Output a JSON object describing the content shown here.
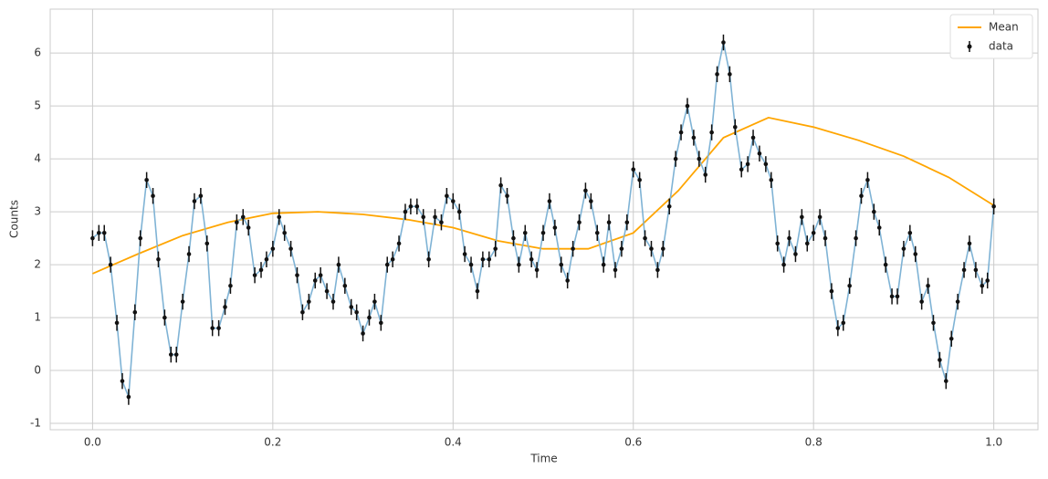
{
  "chart_data": {
    "type": "errorbar",
    "x_label": "Time",
    "y_label": "Counts",
    "xlim": [
      -0.047,
      1.049
    ],
    "ylim": [
      -1.12,
      6.83
    ],
    "xticks": [
      {
        "value": 0,
        "label": "0.0"
      },
      {
        "value": 0.2,
        "label": "0.2"
      },
      {
        "value": 0.4,
        "label": "0.4"
      },
      {
        "value": 0.6,
        "label": "0.6"
      },
      {
        "value": 0.8,
        "label": "0.8"
      },
      {
        "value": 1,
        "label": "1.0"
      }
    ],
    "yticks": [
      -1,
      0,
      1,
      2,
      3,
      4,
      5,
      6
    ],
    "grid": true,
    "legend": "upper right",
    "series": [
      {
        "name": "Mean",
        "kind": "line",
        "color": "#ffa500",
        "x": [
          0,
          0.05,
          0.1,
          0.15,
          0.2,
          0.25,
          0.3,
          0.35,
          0.4,
          0.45,
          0.5,
          0.55,
          0.6,
          0.65,
          0.7,
          0.75,
          0.8,
          0.85,
          0.9,
          0.95,
          1
        ],
        "values": [
          1.83,
          2.2,
          2.55,
          2.8,
          2.97,
          3.0,
          2.95,
          2.85,
          2.7,
          2.45,
          2.3,
          2.3,
          2.6,
          3.4,
          4.4,
          4.78,
          4.6,
          4.35,
          4.05,
          3.65,
          3.12
        ]
      },
      {
        "name": "data",
        "kind": "errorbar",
        "color": "#111111",
        "line_color": "#7fb3d5",
        "yerr": 0.15,
        "x": [
          0,
          0.007,
          0.013,
          0.02,
          0.027,
          0.033,
          0.04,
          0.047,
          0.053,
          0.06,
          0.067,
          0.073,
          0.08,
          0.087,
          0.093,
          0.1,
          0.107,
          0.113,
          0.12,
          0.127,
          0.133,
          0.14,
          0.147,
          0.153,
          0.16,
          0.167,
          0.173,
          0.18,
          0.187,
          0.193,
          0.2,
          0.207,
          0.213,
          0.22,
          0.227,
          0.233,
          0.24,
          0.247,
          0.253,
          0.26,
          0.267,
          0.273,
          0.28,
          0.287,
          0.293,
          0.3,
          0.307,
          0.313,
          0.32,
          0.327,
          0.333,
          0.34,
          0.347,
          0.353,
          0.36,
          0.367,
          0.373,
          0.38,
          0.387,
          0.393,
          0.4,
          0.407,
          0.413,
          0.42,
          0.427,
          0.433,
          0.44,
          0.447,
          0.453,
          0.46,
          0.467,
          0.473,
          0.48,
          0.487,
          0.493,
          0.5,
          0.507,
          0.513,
          0.52,
          0.527,
          0.533,
          0.54,
          0.547,
          0.553,
          0.56,
          0.567,
          0.573,
          0.58,
          0.587,
          0.593,
          0.6,
          0.607,
          0.613,
          0.62,
          0.627,
          0.633,
          0.64,
          0.647,
          0.653,
          0.66,
          0.667,
          0.673,
          0.68,
          0.687,
          0.693,
          0.7,
          0.707,
          0.713,
          0.72,
          0.727,
          0.733,
          0.74,
          0.747,
          0.753,
          0.76,
          0.767,
          0.773,
          0.78,
          0.787,
          0.793,
          0.8,
          0.807,
          0.813,
          0.82,
          0.827,
          0.833,
          0.84,
          0.847,
          0.853,
          0.86,
          0.867,
          0.873,
          0.88,
          0.887,
          0.893,
          0.9,
          0.907,
          0.913,
          0.92,
          0.927,
          0.933,
          0.94,
          0.947,
          0.953,
          0.96,
          0.967,
          0.973,
          0.98,
          0.987,
          0.993,
          1
        ],
        "values": [
          2.5,
          2.6,
          2.6,
          2.0,
          0.9,
          -0.2,
          -0.5,
          1.1,
          2.5,
          3.6,
          3.3,
          2.1,
          1.0,
          0.3,
          0.3,
          1.3,
          2.2,
          3.2,
          3.3,
          2.4,
          0.8,
          0.8,
          1.2,
          1.6,
          2.8,
          2.9,
          2.7,
          1.8,
          1.9,
          2.1,
          2.3,
          2.9,
          2.6,
          2.3,
          1.8,
          1.1,
          1.3,
          1.7,
          1.8,
          1.5,
          1.3,
          2.0,
          1.6,
          1.2,
          1.1,
          0.7,
          1.0,
          1.3,
          0.9,
          2.0,
          2.1,
          2.4,
          3.0,
          3.1,
          3.1,
          2.9,
          2.1,
          2.9,
          2.8,
          3.3,
          3.2,
          3.0,
          2.2,
          2.0,
          1.5,
          2.1,
          2.1,
          2.3,
          3.5,
          3.3,
          2.5,
          2.0,
          2.6,
          2.1,
          1.9,
          2.6,
          3.2,
          2.7,
          2.0,
          1.7,
          2.3,
          2.8,
          3.4,
          3.2,
          2.6,
          2.0,
          2.8,
          1.9,
          2.3,
          2.8,
          3.8,
          3.6,
          2.5,
          2.3,
          1.9,
          2.3,
          3.1,
          4.0,
          4.5,
          5.0,
          4.4,
          4.0,
          3.7,
          4.5,
          5.6,
          6.2,
          5.6,
          4.6,
          3.8,
          3.9,
          4.4,
          4.1,
          3.9,
          3.6,
          2.4,
          2.0,
          2.5,
          2.2,
          2.9,
          2.4,
          2.6,
          2.9,
          2.5,
          1.5,
          0.8,
          0.9,
          1.6,
          2.5,
          3.3,
          3.6,
          3.0,
          2.7,
          2.0,
          1.4,
          1.4,
          2.3,
          2.6,
          2.2,
          1.3,
          1.6,
          0.9,
          0.2,
          -0.2,
          0.6,
          1.3,
          1.9,
          2.4,
          1.9,
          1.6,
          1.7,
          3.1
        ]
      }
    ]
  }
}
